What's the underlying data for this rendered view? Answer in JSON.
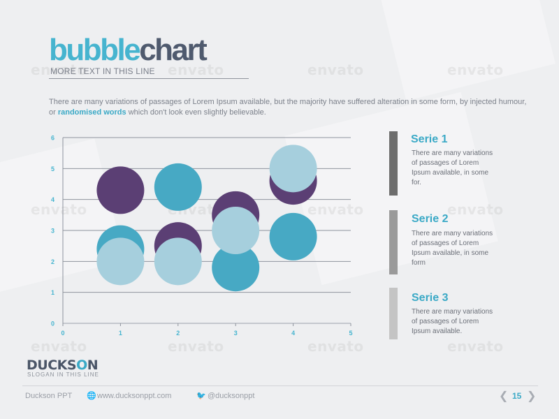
{
  "header": {
    "title_part1": "bubble",
    "title_part2": "chart",
    "subtitle": "MORE TEXT IN THIS LINE"
  },
  "intro": {
    "text_before": "There are many variations of passages of Lorem Ipsum available, but the majority have suffered alteration in some form, by injected humour, or ",
    "highlight": "randomised words",
    "text_after": " which don't look even slightly believable."
  },
  "chart_data": {
    "type": "scatter",
    "title": "",
    "xlabel": "",
    "ylabel": "",
    "xlim": [
      0,
      5
    ],
    "ylim": [
      0,
      6
    ],
    "x_ticks": [
      "0",
      "1",
      "2",
      "3",
      "4",
      "5"
    ],
    "y_ticks": [
      "0",
      "1",
      "2",
      "3",
      "4",
      "5",
      "6"
    ],
    "grid": "horizontal",
    "legend": "right",
    "series": [
      {
        "name": "Serie 1",
        "color": "#5b3f74",
        "points": [
          {
            "x": 1,
            "y": 4.3
          },
          {
            "x": 2,
            "y": 2.5
          },
          {
            "x": 3,
            "y": 3.5
          },
          {
            "x": 4,
            "y": 4.6
          }
        ]
      },
      {
        "name": "Serie 2",
        "color": "#47a9c4",
        "points": [
          {
            "x": 1,
            "y": 2.4
          },
          {
            "x": 2,
            "y": 4.4
          },
          {
            "x": 3,
            "y": 1.8
          },
          {
            "x": 4,
            "y": 2.8
          }
        ]
      },
      {
        "name": "Serie 3",
        "color": "#a6cfdd",
        "points": [
          {
            "x": 1,
            "y": 2.0
          },
          {
            "x": 2,
            "y": 2.0
          },
          {
            "x": 3,
            "y": 3.0
          },
          {
            "x": 4,
            "y": 5.0
          }
        ]
      }
    ]
  },
  "legend": {
    "items": [
      {
        "title": "Serie 1",
        "text": "There are many variations of passages of Lorem Ipsum available, in some for.",
        "color": "#6d6d6d"
      },
      {
        "title": "Serie 2",
        "text": "There are many variations of passages of Lorem Ipsum available, in some form",
        "color": "#9a9a9a"
      },
      {
        "title": "Serie 3",
        "text": "There are many variations of passages of Lorem Ipsum available.",
        "color": "#c4c4c4"
      }
    ]
  },
  "brand": {
    "logo_part1": "DUCKS",
    "logo_o": "O",
    "logo_part2": "N",
    "slogan": "SLOGAN IN THIS LINE"
  },
  "footer": {
    "company": "Duckson PPT",
    "website": "www.ducksonppt.com",
    "twitter": "@ducksonppt",
    "page": "15",
    "globe_icon": "globe-icon",
    "twitter_icon": "twitter-icon"
  },
  "watermark": "envato"
}
